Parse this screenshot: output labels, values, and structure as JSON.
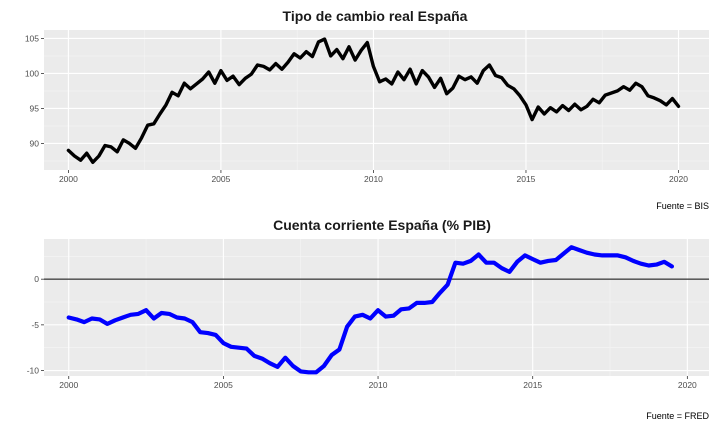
{
  "chart_data": [
    {
      "type": "line",
      "title": "Tipo de cambio real España",
      "caption": "Fuente = BIS",
      "xlabel": "",
      "ylabel": "",
      "xlim": [
        1999.2,
        2021.0
      ],
      "ylim": [
        86.2,
        106.2
      ],
      "xticks": [
        2000,
        2005,
        2010,
        2015,
        2020
      ],
      "yticks": [
        90,
        95,
        100,
        105
      ],
      "grid": true,
      "line_color": "#000000",
      "x": [
        2000.0,
        2000.2,
        2000.4,
        2000.6,
        2000.8,
        2001.0,
        2001.2,
        2001.4,
        2001.6,
        2001.8,
        2002.0,
        2002.2,
        2002.4,
        2002.6,
        2002.8,
        2003.0,
        2003.2,
        2003.4,
        2003.6,
        2003.8,
        2004.0,
        2004.2,
        2004.4,
        2004.6,
        2004.8,
        2005.0,
        2005.2,
        2005.4,
        2005.6,
        2005.8,
        2006.0,
        2006.2,
        2006.4,
        2006.6,
        2006.8,
        2007.0,
        2007.2,
        2007.4,
        2007.6,
        2007.8,
        2008.0,
        2008.2,
        2008.4,
        2008.6,
        2008.8,
        2009.0,
        2009.2,
        2009.4,
        2009.6,
        2009.8,
        2010.0,
        2010.2,
        2010.4,
        2010.6,
        2010.8,
        2011.0,
        2011.2,
        2011.4,
        2011.6,
        2011.8,
        2012.0,
        2012.2,
        2012.4,
        2012.6,
        2012.8,
        2013.0,
        2013.2,
        2013.4,
        2013.6,
        2013.8,
        2014.0,
        2014.2,
        2014.4,
        2014.6,
        2014.8,
        2015.0,
        2015.2,
        2015.4,
        2015.6,
        2015.8,
        2016.0,
        2016.2,
        2016.4,
        2016.6,
        2016.8,
        2017.0,
        2017.2,
        2017.4,
        2017.6,
        2017.8,
        2018.0,
        2018.2,
        2018.4,
        2018.6,
        2018.8,
        2019.0,
        2019.2,
        2019.4,
        2019.6,
        2019.8,
        2020.0
      ],
      "values": [
        89.0,
        88.2,
        87.6,
        88.6,
        87.3,
        88.2,
        89.7,
        89.5,
        88.8,
        90.5,
        90.0,
        89.3,
        90.8,
        92.6,
        92.8,
        94.2,
        95.5,
        97.3,
        96.8,
        98.6,
        97.8,
        98.5,
        99.2,
        100.2,
        98.6,
        100.4,
        99.0,
        99.6,
        98.4,
        99.3,
        99.9,
        101.2,
        101.0,
        100.5,
        101.4,
        100.6,
        101.6,
        102.8,
        102.2,
        103.1,
        102.4,
        104.5,
        104.9,
        102.5,
        103.4,
        102.1,
        103.8,
        101.9,
        103.3,
        104.4,
        101.0,
        98.8,
        99.2,
        98.5,
        100.2,
        99.1,
        100.6,
        98.5,
        100.4,
        99.5,
        98.0,
        99.3,
        97.1,
        97.9,
        99.6,
        99.1,
        99.5,
        98.6,
        100.4,
        101.2,
        99.7,
        99.4,
        98.3,
        97.8,
        96.8,
        95.5,
        93.4,
        95.2,
        94.2,
        95.1,
        94.5,
        95.4,
        94.7,
        95.6,
        94.8,
        95.3,
        96.3,
        95.8,
        96.9,
        97.2,
        97.5,
        98.1,
        97.6,
        98.6,
        98.1,
        96.8,
        96.5,
        96.1,
        95.5,
        96.4,
        95.3
      ]
    },
    {
      "type": "line",
      "title": "Cuenta corriente España (% PIB)",
      "caption": "Fuente = FRED",
      "xlabel": "",
      "ylabel": "",
      "xlim": [
        1999.2,
        2020.7
      ],
      "ylim": [
        -10.6,
        4.4
      ],
      "xticks": [
        2000,
        2005,
        2010,
        2015,
        2020
      ],
      "yticks": [
        -10,
        -5,
        0
      ],
      "hline": 0,
      "grid": true,
      "line_color": "#0000ff",
      "x": [
        2000.0,
        2000.25,
        2000.5,
        2000.75,
        2001.0,
        2001.25,
        2001.5,
        2001.75,
        2002.0,
        2002.25,
        2002.5,
        2002.75,
        2003.0,
        2003.25,
        2003.5,
        2003.75,
        2004.0,
        2004.25,
        2004.5,
        2004.75,
        2005.0,
        2005.25,
        2005.5,
        2005.75,
        2006.0,
        2006.25,
        2006.5,
        2006.75,
        2007.0,
        2007.25,
        2007.5,
        2007.75,
        2008.0,
        2008.25,
        2008.5,
        2008.75,
        2009.0,
        2009.25,
        2009.5,
        2009.75,
        2010.0,
        2010.25,
        2010.5,
        2010.75,
        2011.0,
        2011.25,
        2011.5,
        2011.75,
        2012.0,
        2012.25,
        2012.5,
        2012.75,
        2013.0,
        2013.25,
        2013.5,
        2013.75,
        2014.0,
        2014.25,
        2014.5,
        2014.75,
        2015.0,
        2015.25,
        2015.5,
        2015.75,
        2016.0,
        2016.25,
        2016.5,
        2016.75,
        2017.0,
        2017.25,
        2017.5,
        2017.75,
        2018.0,
        2018.25,
        2018.5,
        2018.75,
        2019.0,
        2019.25,
        2019.5
      ],
      "values": [
        -4.2,
        -4.4,
        -4.7,
        -4.3,
        -4.4,
        -4.9,
        -4.5,
        -4.2,
        -3.9,
        -3.8,
        -3.4,
        -4.3,
        -3.7,
        -3.8,
        -4.2,
        -4.3,
        -4.7,
        -5.8,
        -5.9,
        -6.1,
        -7.0,
        -7.4,
        -7.5,
        -7.6,
        -8.4,
        -8.7,
        -9.2,
        -9.6,
        -8.6,
        -9.5,
        -10.1,
        -10.2,
        -10.2,
        -9.5,
        -8.3,
        -7.7,
        -5.2,
        -4.1,
        -3.9,
        -4.3,
        -3.4,
        -4.1,
        -4.0,
        -3.3,
        -3.2,
        -2.6,
        -2.6,
        -2.5,
        -1.5,
        -0.6,
        1.8,
        1.7,
        2.0,
        2.7,
        1.8,
        1.8,
        1.2,
        0.8,
        1.9,
        2.6,
        2.2,
        1.8,
        2.0,
        2.1,
        2.8,
        3.5,
        3.2,
        2.9,
        2.7,
        2.6,
        2.6,
        2.6,
        2.4,
        2.0,
        1.7,
        1.5,
        1.6,
        1.9,
        1.4
      ]
    }
  ]
}
